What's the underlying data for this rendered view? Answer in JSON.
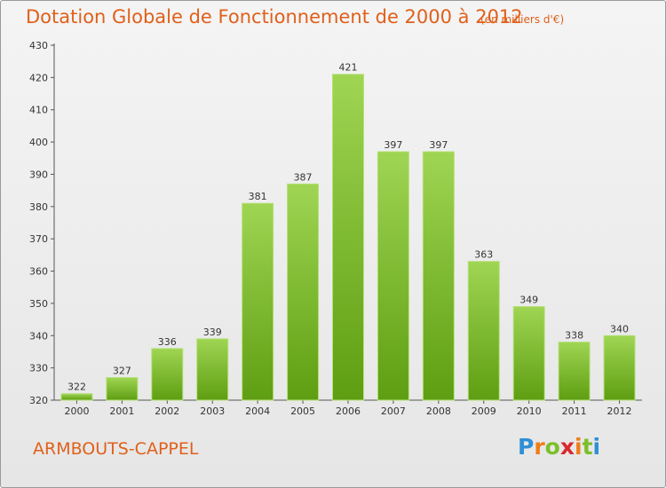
{
  "header": {
    "title": "Dotation Globale de Fonctionnement de 2000 à 2012",
    "unit": "(en milliers d'€)"
  },
  "footer": {
    "commune": "ARMBOUTS-CAPPEL",
    "logo_text": "Proxiti"
  },
  "colors": {
    "title": "#e0601a",
    "bar_top": "#9fd553",
    "bar_bottom": "#5e9e12",
    "bar_edge": "#b6e07a"
  },
  "chart_data": {
    "type": "bar",
    "title": "Dotation Globale de Fonctionnement de 2000 à 2012",
    "xlabel": "",
    "ylabel": "",
    "categories": [
      "2000",
      "2001",
      "2002",
      "2003",
      "2004",
      "2005",
      "2006",
      "2007",
      "2008",
      "2009",
      "2010",
      "2011",
      "2012"
    ],
    "values": [
      322,
      327,
      336,
      339,
      381,
      387,
      421,
      397,
      397,
      363,
      349,
      338,
      340
    ],
    "ylim": [
      320,
      430
    ],
    "yticks": [
      320,
      330,
      340,
      350,
      360,
      370,
      380,
      390,
      400,
      410,
      420,
      430
    ],
    "grid": false,
    "legend": "none"
  }
}
